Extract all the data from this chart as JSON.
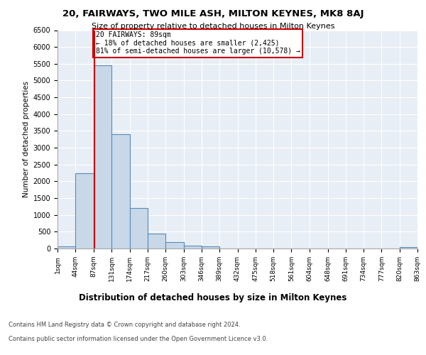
{
  "title1": "20, FAIRWAYS, TWO MILE ASH, MILTON KEYNES, MK8 8AJ",
  "title2": "Size of property relative to detached houses in Milton Keynes",
  "xlabel": "Distribution of detached houses by size in Milton Keynes",
  "ylabel": "Number of detached properties",
  "property_size": 89,
  "annotation_title": "20 FAIRWAYS: 89sqm",
  "annotation_line1": "← 18% of detached houses are smaller (2,425)",
  "annotation_line2": "81% of semi-detached houses are larger (10,578) →",
  "footer1": "Contains HM Land Registry data © Crown copyright and database right 2024.",
  "footer2": "Contains public sector information licensed under the Open Government Licence v3.0.",
  "bin_edges": [
    1,
    44,
    87,
    131,
    174,
    217,
    260,
    303,
    346,
    389,
    432,
    475,
    518,
    561,
    604,
    648,
    691,
    734,
    777,
    820,
    863
  ],
  "bin_values": [
    70,
    2250,
    5450,
    3400,
    1200,
    450,
    190,
    75,
    60,
    0,
    0,
    0,
    0,
    0,
    0,
    0,
    0,
    0,
    0,
    50
  ],
  "bar_color": "#c8d8e8",
  "bar_edge_color": "#5a8ab5",
  "vline_color": "#cc0000",
  "annotation_border_color": "#cc0000",
  "plot_bg_color": "#e8eef5",
  "grid_color": "#ffffff",
  "ylim": [
    0,
    6500
  ],
  "yticks": [
    0,
    500,
    1000,
    1500,
    2000,
    2500,
    3000,
    3500,
    4000,
    4500,
    5000,
    5500,
    6000,
    6500
  ]
}
